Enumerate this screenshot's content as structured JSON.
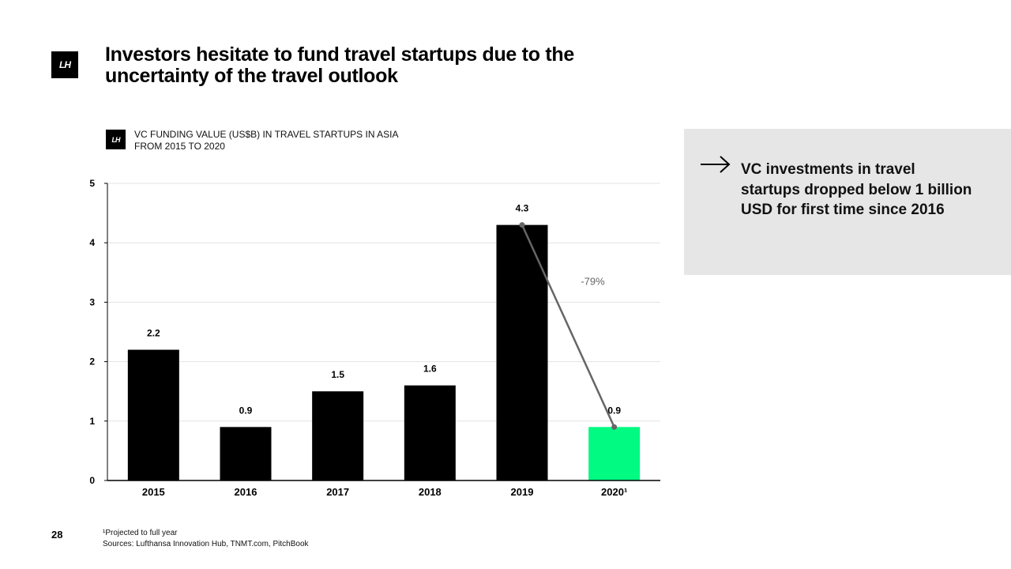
{
  "logo": {
    "text": "LH"
  },
  "title": "Investors hesitate to fund travel startups due to the uncertainty of the travel outlook",
  "chart_caption": "VC FUNDING VALUE (US$B) IN TRAVEL STARTUPS IN ASIA FROM 2015 TO 2020",
  "chart_data": {
    "type": "bar",
    "title": "VC FUNDING VALUE (US$B) IN TRAVEL STARTUPS IN ASIA FROM 2015 TO 2020",
    "categories": [
      "2015",
      "2016",
      "2017",
      "2018",
      "2019",
      "2020¹"
    ],
    "values": [
      2.2,
      0.9,
      1.5,
      1.6,
      4.3,
      0.9
    ],
    "value_labels": [
      "2.2",
      "0.9",
      "1.5",
      "1.6",
      "4.3",
      "0.9"
    ],
    "bar_colors": [
      "#000000",
      "#000000",
      "#000000",
      "#000000",
      "#000000",
      "#00fa82"
    ],
    "ylim": [
      0,
      5
    ],
    "yticks": [
      0,
      1,
      2,
      3,
      4,
      5
    ],
    "xlabel": "",
    "ylabel": "",
    "grid": true,
    "change_annotation": {
      "from_index": 4,
      "to_index": 5,
      "label": "-79%",
      "color": "#666666"
    }
  },
  "callout": {
    "text": "VC investments in travel startups dropped below 1 billion USD for first time since 2016",
    "arrow_icon": "right-arrow-icon"
  },
  "page_number": "28",
  "footnotes": {
    "note": "¹Projected to full year",
    "sources": "Sources: Lufthansa Innovation Hub, TNMT.com, PitchBook"
  }
}
